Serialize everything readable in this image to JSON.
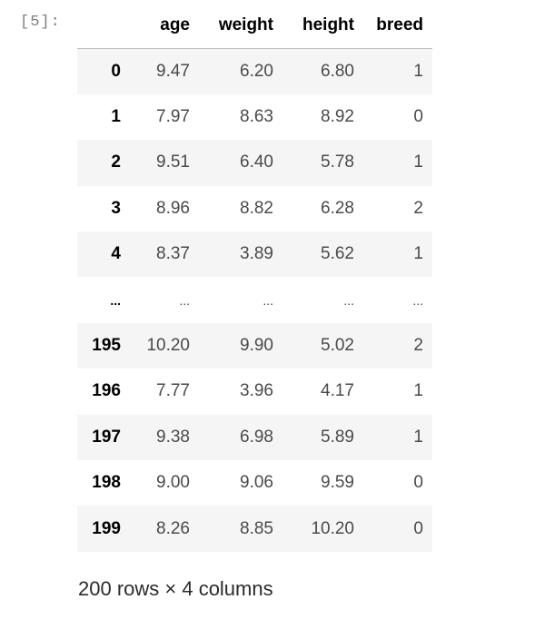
{
  "cell": {
    "prompt": "[5]:"
  },
  "dataframe": {
    "columns": [
      "age",
      "weight",
      "height",
      "breed"
    ],
    "rows": [
      {
        "index": "0",
        "age": "9.47",
        "weight": "6.20",
        "height": "6.80",
        "breed": "1"
      },
      {
        "index": "1",
        "age": "7.97",
        "weight": "8.63",
        "height": "8.92",
        "breed": "0"
      },
      {
        "index": "2",
        "age": "9.51",
        "weight": "6.40",
        "height": "5.78",
        "breed": "1"
      },
      {
        "index": "3",
        "age": "8.96",
        "weight": "8.82",
        "height": "6.28",
        "breed": "2"
      },
      {
        "index": "4",
        "age": "8.37",
        "weight": "3.89",
        "height": "5.62",
        "breed": "1"
      },
      {
        "index": "...",
        "age": "...",
        "weight": "...",
        "height": "...",
        "breed": "..."
      },
      {
        "index": "195",
        "age": "10.20",
        "weight": "9.90",
        "height": "5.02",
        "breed": "2"
      },
      {
        "index": "196",
        "age": "7.77",
        "weight": "3.96",
        "height": "4.17",
        "breed": "1"
      },
      {
        "index": "197",
        "age": "9.38",
        "weight": "6.98",
        "height": "5.89",
        "breed": "1"
      },
      {
        "index": "198",
        "age": "9.00",
        "weight": "9.06",
        "height": "9.59",
        "breed": "0"
      },
      {
        "index": "199",
        "age": "8.26",
        "weight": "8.85",
        "height": "10.20",
        "breed": "0"
      }
    ],
    "shape_text": "200 rows × 4 columns"
  }
}
